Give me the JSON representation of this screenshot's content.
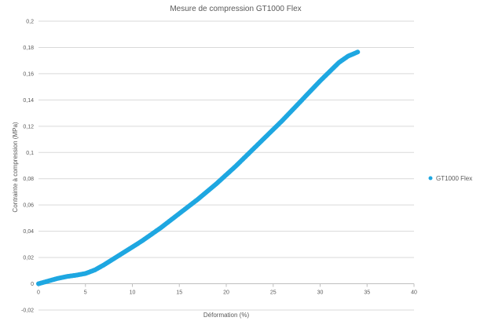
{
  "chart_data": {
    "type": "scatter",
    "title": "Mesure de compression GT1000 Flex",
    "xlabel": "Déformation (%)",
    "ylabel": "Contrainte à compression (MPa)",
    "xlim": [
      0,
      40
    ],
    "ylim": [
      -0.02,
      0.2
    ],
    "x_ticks": [
      "0",
      "5",
      "10",
      "15",
      "20",
      "25",
      "30",
      "35",
      "40"
    ],
    "y_ticks": [
      "-0,02",
      "0",
      "0,02",
      "0,04",
      "0,06",
      "0,08",
      "0,1",
      "0,12",
      "0,14",
      "0,16",
      "0,18",
      "0,2"
    ],
    "grid": "horizontal",
    "legend": "right",
    "color": "#1ea7e1",
    "series": [
      {
        "name": "GT1000 Flex",
        "x": [
          0,
          1,
          2,
          3,
          4,
          5,
          6,
          7,
          8,
          9,
          10,
          11,
          12,
          13,
          14,
          15,
          16,
          17,
          18,
          19,
          20,
          21,
          22,
          23,
          24,
          25,
          26,
          27,
          28,
          29,
          30,
          31,
          32,
          33,
          34
        ],
        "y": [
          0,
          0.002,
          0.004,
          0.0055,
          0.0065,
          0.0078,
          0.0105,
          0.0145,
          0.019,
          0.0235,
          0.028,
          0.0325,
          0.0375,
          0.0425,
          0.048,
          0.0535,
          0.059,
          0.0645,
          0.0705,
          0.0765,
          0.083,
          0.0895,
          0.0965,
          0.1035,
          0.1105,
          0.1175,
          0.1245,
          0.132,
          0.1395,
          0.147,
          0.1545,
          0.1615,
          0.1685,
          0.1735,
          0.1765
        ]
      }
    ]
  }
}
